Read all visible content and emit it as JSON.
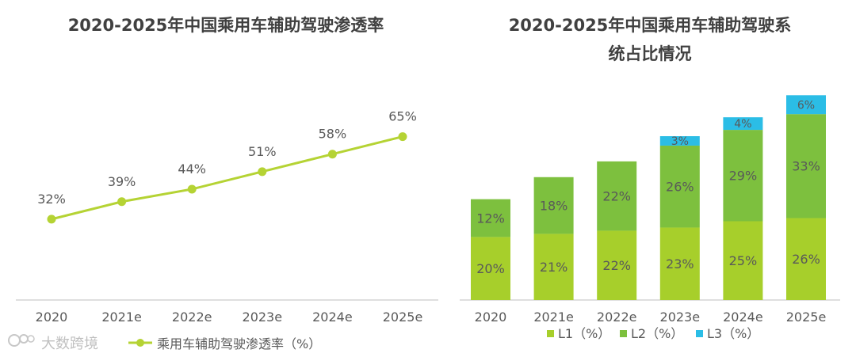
{
  "left_chart": {
    "title": "2020-2025年中国乘用车辅助驾驶渗透率",
    "legend_label": "乘用车辅助驾驶渗透率（%）"
  },
  "right_chart": {
    "title_line1": "2020-2025年中国乘用车辅助驾驶系",
    "title_line2": "统占比情况"
  },
  "watermark": {
    "text": "大数跨境"
  },
  "colors": {
    "line": "#b5d334",
    "l1": "#a7cf2b",
    "l2": "#7dc03e",
    "l3": "#2bbde6",
    "axis": "#bfbfbf"
  },
  "chart_data": [
    {
      "type": "line",
      "title": "2020-2025年中国乘用车辅助驾驶渗透率",
      "categories": [
        "2020",
        "2021e",
        "2022e",
        "2023e",
        "2024e",
        "2025e"
      ],
      "series": [
        {
          "name": "乘用车辅助驾驶渗透率（%）",
          "values": [
            32,
            39,
            44,
            51,
            58,
            65
          ],
          "labels": [
            "32%",
            "39%",
            "44%",
            "51%",
            "58%",
            "65%"
          ]
        }
      ],
      "ylim": [
        0,
        100
      ],
      "grid": false,
      "legend": "bottom"
    },
    {
      "type": "bar",
      "stacked": true,
      "title": "2020-2025年中国乘用车辅助驾驶系统占比情况",
      "categories": [
        "2020",
        "2021e",
        "2022e",
        "2023e",
        "2024e",
        "2025e"
      ],
      "series": [
        {
          "name": "L1（%）",
          "values": [
            20,
            21,
            22,
            23,
            25,
            26
          ],
          "labels": [
            "20%",
            "21%",
            "22%",
            "23%",
            "25%",
            "26%"
          ]
        },
        {
          "name": "L2（%）",
          "values": [
            12,
            18,
            22,
            26,
            29,
            33
          ],
          "labels": [
            "12%",
            "18%",
            "22%",
            "26%",
            "29%",
            "33%"
          ]
        },
        {
          "name": "L3（%）",
          "values": [
            0,
            0,
            0,
            3,
            4,
            6
          ],
          "labels": [
            "",
            "",
            "",
            "3%",
            "4%",
            "6%"
          ]
        }
      ],
      "ylim": [
        0,
        65
      ],
      "grid": false,
      "legend": "bottom"
    }
  ]
}
